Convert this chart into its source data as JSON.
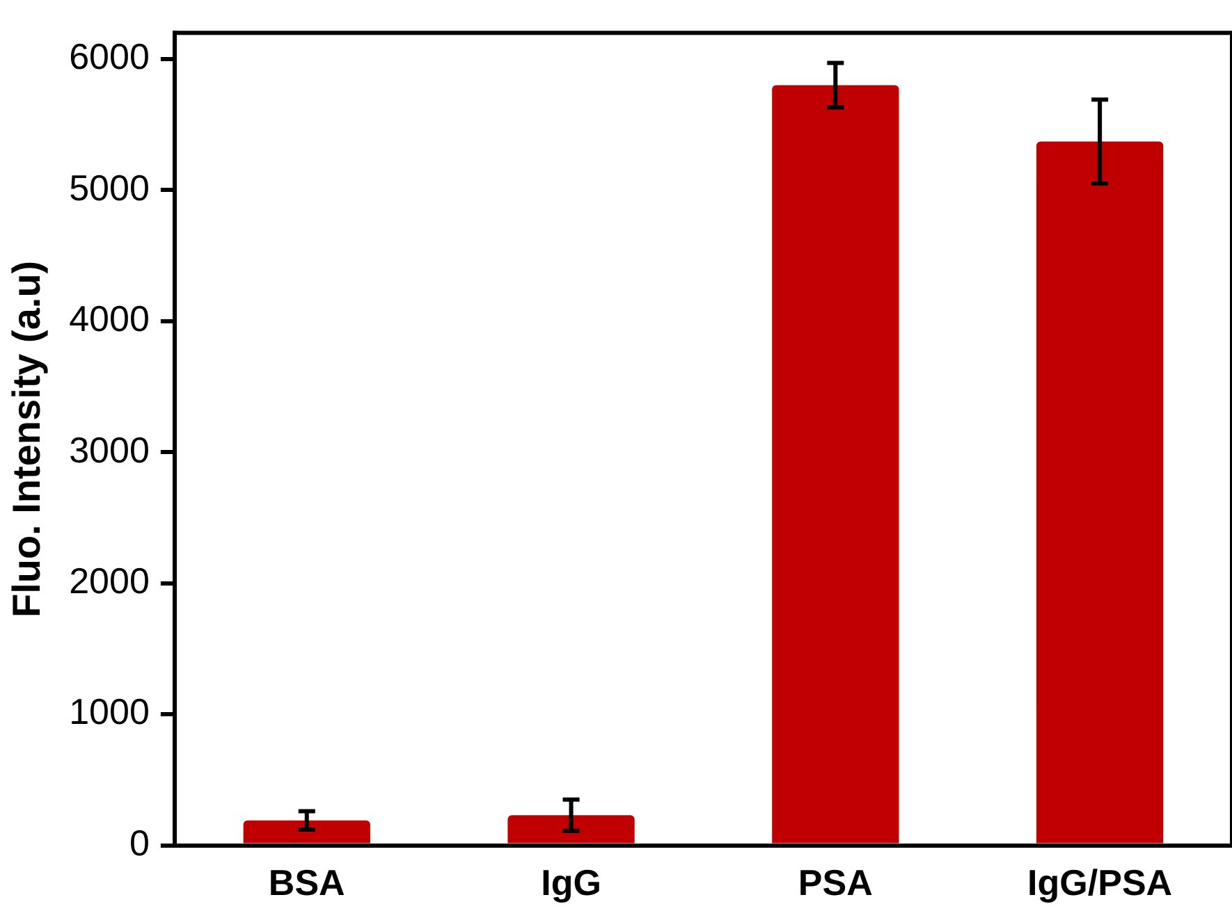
{
  "chart_data": {
    "type": "bar",
    "ylabel": "Fluo. Intensity (a.u)",
    "categories": [
      "BSA",
      "IgG",
      "PSA",
      "IgG/PSA"
    ],
    "values": [
      190,
      230,
      5800,
      5370
    ],
    "errors": [
      70,
      120,
      170,
      320
    ],
    "color": "#c00000",
    "ylim": [
      0,
      6200
    ],
    "yticks": [
      0,
      1000,
      2000,
      3000,
      4000,
      5000,
      6000
    ],
    "grid": false,
    "legend": false
  }
}
